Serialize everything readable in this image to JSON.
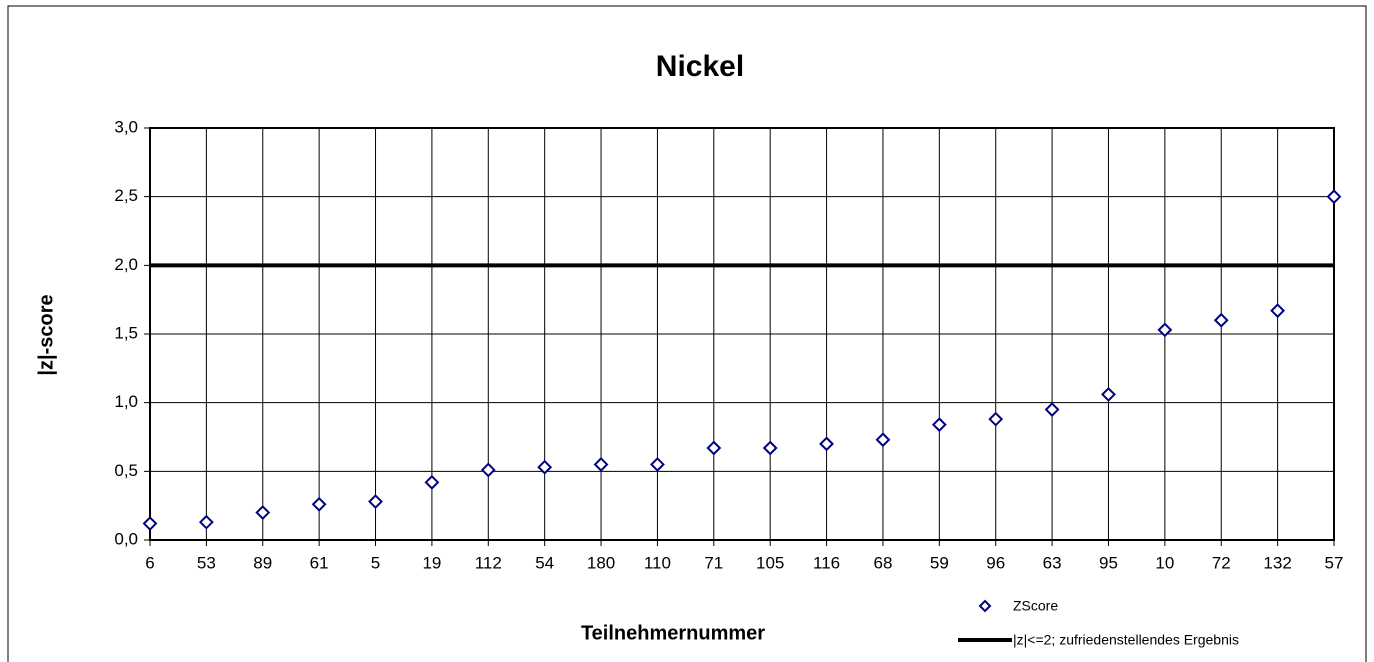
{
  "chart_data": {
    "type": "scatter",
    "title": "Nickel",
    "x_label": "Teilnehmernummer",
    "y_label": "|z|-score",
    "categories": [
      "6",
      "53",
      "89",
      "61",
      "5",
      "19",
      "112",
      "54",
      "180",
      "110",
      "71",
      "105",
      "116",
      "68",
      "59",
      "96",
      "63",
      "95",
      "10",
      "72",
      "132",
      "57"
    ],
    "series": [
      {
        "name": "ZScore",
        "color": "#000080",
        "values": [
          0.12,
          0.13,
          0.2,
          0.26,
          0.28,
          0.42,
          0.51,
          0.53,
          0.55,
          0.55,
          0.67,
          0.67,
          0.7,
          0.73,
          0.84,
          0.88,
          0.95,
          1.06,
          1.53,
          1.6,
          1.67,
          2.5
        ]
      }
    ],
    "reference_line": {
      "name": "|z|<=2; zufriedenstellendes Ergebnis",
      "value": 2,
      "color": "#000000"
    },
    "ylim": [
      0,
      3
    ],
    "yticks": [
      {
        "value": 0,
        "label": "0,0"
      },
      {
        "value": 0.5,
        "label": "0,5"
      },
      {
        "value": 1,
        "label": "1,0"
      },
      {
        "value": 1.5,
        "label": "1,5"
      },
      {
        "value": 2,
        "label": "2,0"
      },
      {
        "value": 2.5,
        "label": "2,5"
      },
      {
        "value": 3,
        "label": "3,0"
      }
    ],
    "grid": true
  }
}
